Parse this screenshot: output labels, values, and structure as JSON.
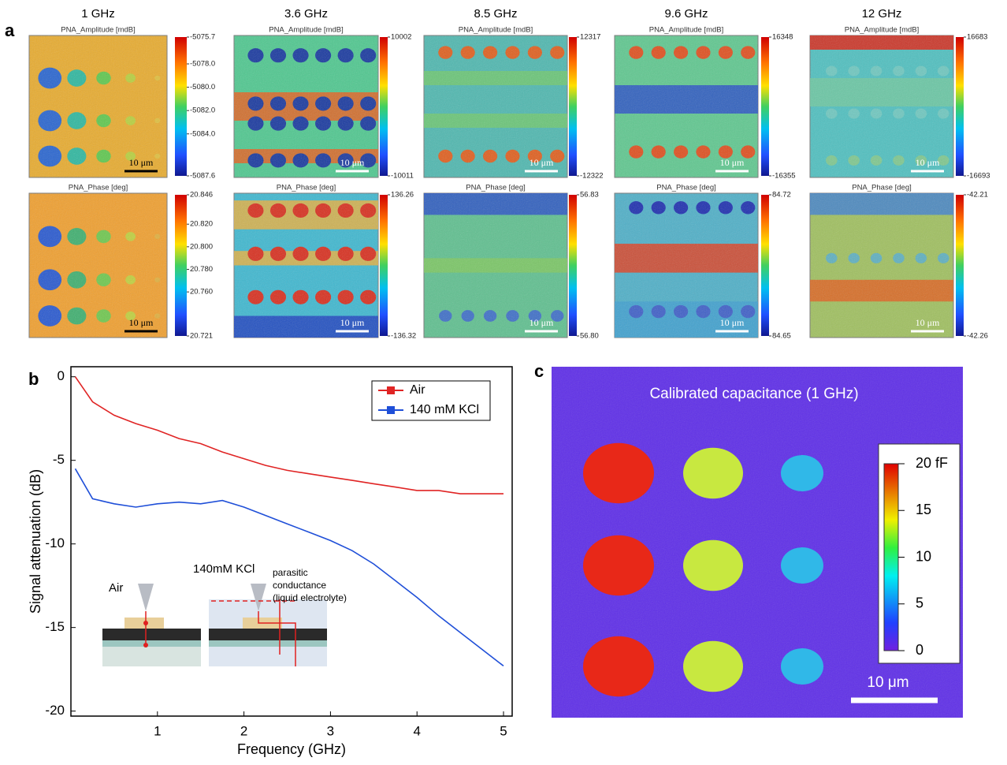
{
  "panel_labels": [
    "a",
    "b",
    "c"
  ],
  "panel_a": {
    "amplitude_title": "PNA_Amplitude [mdB]",
    "phase_title": "PNA_Phase [deg]",
    "scale_bar": "10 μm",
    "columns": [
      {
        "frequency": "1 GHz",
        "amplitude_ticks": [
          -5075.7,
          {
            "value": -5078.0,
            "label": "-5078.0"
          },
          {
            "value": -5080.0,
            "label": "-5080.0"
          },
          {
            "value": -5082.0,
            "label": "-5082.0"
          },
          {
            "value": -5084.0,
            "label": "-5084.0"
          },
          -5087.6
        ],
        "phase_ticks": [
          20.846,
          {
            "value": 20.82,
            "label": "20.820"
          },
          {
            "value": 20.8,
            "label": "20.800"
          },
          {
            "value": 20.78,
            "label": "20.780"
          },
          {
            "value": 20.76,
            "label": "20.760"
          },
          20.721
        ]
      },
      {
        "frequency": "3.6 GHz",
        "amplitude_ticks": [
          10002,
          -10011
        ],
        "phase_ticks": [
          136.26,
          -136.32
        ]
      },
      {
        "frequency": "8.5 GHz",
        "amplitude_ticks": [
          12317,
          -12322
        ],
        "phase_ticks": [
          56.83,
          {
            "value": 56.8,
            "label": "56.80"
          }
        ]
      },
      {
        "frequency": "9.6 GHz",
        "amplitude_ticks": [
          16348,
          -16355
        ],
        "phase_ticks": [
          84.72,
          84.65
        ]
      },
      {
        "frequency": "12 GHz",
        "amplitude_ticks": [
          16683,
          -16693
        ],
        "phase_ticks": [
          -42.21,
          -42.26
        ]
      }
    ]
  },
  "chart_data": {
    "type": "line",
    "x_label": "Frequency (GHz)",
    "y_label": "Signal attenuation (dB)",
    "x": [
      0.05,
      0.25,
      0.5,
      0.75,
      1,
      1.25,
      1.5,
      1.75,
      2,
      2.25,
      2.5,
      2.75,
      3,
      3.25,
      3.5,
      3.75,
      4,
      4.25,
      4.5,
      4.75,
      5
    ],
    "series": [
      {
        "name": "Air",
        "color": "#e02424",
        "values": [
          0,
          -1.5,
          -2.3,
          -2.8,
          -3.2,
          -3.7,
          -4.0,
          -4.5,
          -4.9,
          -5.3,
          -5.6,
          -5.8,
          -6.0,
          -6.2,
          -6.4,
          -6.6,
          -6.8,
          -6.8,
          -7.0,
          -7.0,
          -7.0
        ]
      },
      {
        "name": "140 mM KCl",
        "color": "#1f4fd8",
        "values": [
          -5.5,
          -7.3,
          -7.6,
          -7.8,
          -7.6,
          -7.5,
          -7.6,
          -7.4,
          -7.8,
          -8.3,
          -8.8,
          -9.3,
          -9.8,
          -10.4,
          -11.2,
          -12.2,
          -13.2,
          -14.3,
          -15.3,
          -16.3,
          -17.3
        ]
      }
    ],
    "xlim": [
      0,
      5.1
    ],
    "ylim": [
      -20.3,
      0.6
    ],
    "xticks": [
      1,
      2,
      3,
      4,
      5
    ],
    "yticks": [
      0,
      -5,
      -10,
      -15,
      -20
    ],
    "legend": "upper right",
    "annotations": {
      "air": "Air",
      "kcl": "140mM KCl",
      "parasitic": [
        "parasitic",
        "conductance",
        "(liquid electrolyte)"
      ]
    }
  },
  "panel_c": {
    "title": "Calibrated capacitance (1 GHz)",
    "clim": [
      0,
      20
    ],
    "colorbar_ticks": [
      0,
      5,
      10,
      15,
      {
        "value": 20,
        "label": "20 fF"
      }
    ],
    "scale_bar": "10 μm"
  }
}
